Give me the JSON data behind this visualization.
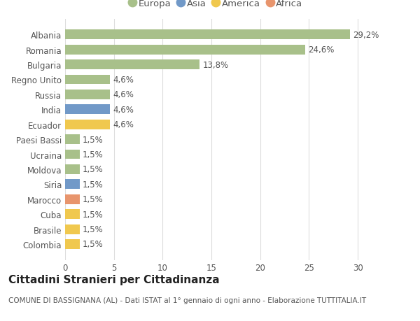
{
  "countries": [
    "Albania",
    "Romania",
    "Bulgaria",
    "Regno Unito",
    "Russia",
    "India",
    "Ecuador",
    "Paesi Bassi",
    "Ucraina",
    "Moldova",
    "Siria",
    "Marocco",
    "Cuba",
    "Brasile",
    "Colombia"
  ],
  "values": [
    29.2,
    24.6,
    13.8,
    4.6,
    4.6,
    4.6,
    4.6,
    1.5,
    1.5,
    1.5,
    1.5,
    1.5,
    1.5,
    1.5,
    1.5
  ],
  "labels": [
    "29,2%",
    "24,6%",
    "13,8%",
    "4,6%",
    "4,6%",
    "4,6%",
    "4,6%",
    "1,5%",
    "1,5%",
    "1,5%",
    "1,5%",
    "1,5%",
    "1,5%",
    "1,5%",
    "1,5%"
  ],
  "continents": [
    "Europa",
    "Europa",
    "Europa",
    "Europa",
    "Europa",
    "Asia",
    "America",
    "Europa",
    "Europa",
    "Europa",
    "Asia",
    "Africa",
    "America",
    "America",
    "America"
  ],
  "colors": {
    "Europa": "#a8c08a",
    "Asia": "#7199c8",
    "America": "#f0c84e",
    "Africa": "#e8956d"
  },
  "legend_order": [
    "Europa",
    "Asia",
    "America",
    "Africa"
  ],
  "title": "Cittadini Stranieri per Cittadinanza",
  "subtitle": "COMUNE DI BASSIGNANA (AL) - Dati ISTAT al 1° gennaio di ogni anno - Elaborazione TUTTITALIA.IT",
  "xlim": [
    0,
    31
  ],
  "xticks": [
    0,
    5,
    10,
    15,
    20,
    25,
    30
  ],
  "bg_color": "#ffffff",
  "grid_color": "#dddddd",
  "title_fontsize": 11,
  "subtitle_fontsize": 7.5,
  "label_fontsize": 8.5,
  "tick_fontsize": 8.5,
  "legend_fontsize": 9.5
}
